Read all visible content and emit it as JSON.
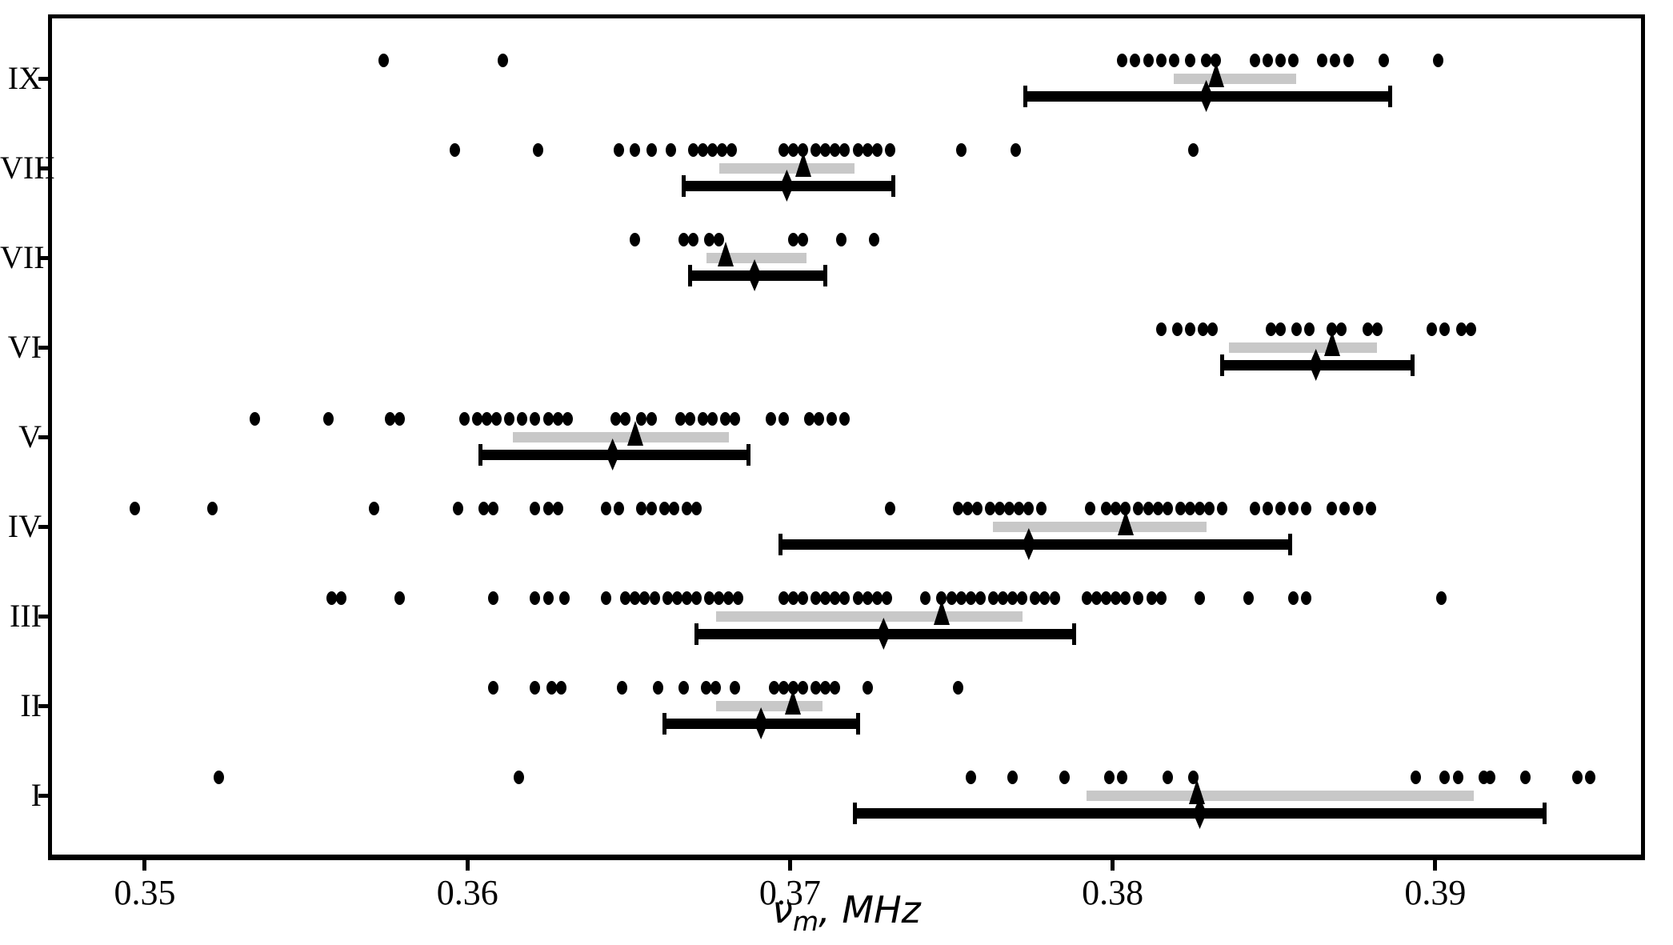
{
  "figure": {
    "background": "#ffffff",
    "frame_color": "#000000",
    "point_color": "#000000",
    "gray_bar_color": "#c8c8c8",
    "black_bar_color": "#000000",
    "x_axis_title": {
      "symbol": "ν",
      "subscript": "m",
      "rest": ", MHz"
    }
  },
  "chart_data": {
    "type": "scatter",
    "title": "",
    "xlabel": "ν_m, MHz",
    "ylabel": "",
    "grid": false,
    "legend": "none",
    "xlim": [
      0.347,
      0.3965
    ],
    "x_ticks": [
      0.35,
      0.36,
      0.37,
      0.38,
      0.39
    ],
    "x_tick_labels": [
      "0.35",
      "0.36",
      "0.37",
      "0.38",
      "0.39"
    ],
    "categories": [
      "IX",
      "VIII",
      "VII",
      "VI",
      "V",
      "IV",
      "III",
      "II",
      "I"
    ],
    "rows": [
      {
        "label": "IX",
        "points": [
          0.3574,
          0.3611,
          0.3803,
          0.3807,
          0.3811,
          0.3815,
          0.3819,
          0.3824,
          0.3829,
          0.3832,
          0.3844,
          0.3848,
          0.3852,
          0.3856,
          0.3865,
          0.3869,
          0.3873,
          0.3884,
          0.3901
        ],
        "gray_interval": [
          0.3819,
          0.3857
        ],
        "triangle": 0.3832,
        "black_interval": [
          0.3773,
          0.3886
        ],
        "diamond": 0.3829
      },
      {
        "label": "VIII",
        "points": [
          0.3596,
          0.3622,
          0.3647,
          0.3652,
          0.3657,
          0.3663,
          0.367,
          0.3673,
          0.3676,
          0.3679,
          0.3682,
          0.3698,
          0.3701,
          0.3704,
          0.3708,
          0.3711,
          0.3714,
          0.3717,
          0.3721,
          0.3724,
          0.3727,
          0.3731,
          0.3753,
          0.377,
          0.3825
        ],
        "gray_interval": [
          0.3678,
          0.372
        ],
        "triangle": 0.3704,
        "black_interval": [
          0.3667,
          0.3732
        ],
        "diamond": 0.3699
      },
      {
        "label": "VII",
        "points": [
          0.3652,
          0.3667,
          0.367,
          0.3675,
          0.3678,
          0.3701,
          0.3704,
          0.3716,
          0.3726
        ],
        "gray_interval": [
          0.3674,
          0.3705
        ],
        "triangle": 0.368,
        "black_interval": [
          0.3669,
          0.3711
        ],
        "diamond": 0.3689
      },
      {
        "label": "VI",
        "points": [
          0.3815,
          0.382,
          0.3824,
          0.3828,
          0.3831,
          0.3849,
          0.3852,
          0.3857,
          0.3861,
          0.3868,
          0.3871,
          0.3879,
          0.3882,
          0.3899,
          0.3903,
          0.3908,
          0.3911
        ],
        "gray_interval": [
          0.3836,
          0.3882
        ],
        "triangle": 0.3868,
        "black_interval": [
          0.3834,
          0.3893
        ],
        "diamond": 0.3863
      },
      {
        "label": "V",
        "points": [
          0.3534,
          0.3557,
          0.3576,
          0.3579,
          0.3599,
          0.3603,
          0.3606,
          0.3609,
          0.3613,
          0.3617,
          0.3621,
          0.3625,
          0.3628,
          0.3631,
          0.3646,
          0.3649,
          0.3654,
          0.3657,
          0.3666,
          0.3669,
          0.3673,
          0.3676,
          0.368,
          0.3683,
          0.3694,
          0.3698,
          0.3706,
          0.3709,
          0.3713,
          0.3717
        ],
        "gray_interval": [
          0.3614,
          0.3681
        ],
        "triangle": 0.3652,
        "black_interval": [
          0.3604,
          0.3687
        ],
        "diamond": 0.3645
      },
      {
        "label": "IV",
        "points": [
          0.3497,
          0.3521,
          0.3571,
          0.3597,
          0.3605,
          0.3608,
          0.3621,
          0.3625,
          0.3628,
          0.3643,
          0.3647,
          0.3654,
          0.3657,
          0.3661,
          0.3664,
          0.3668,
          0.3671,
          0.3731,
          0.3752,
          0.3755,
          0.3758,
          0.3762,
          0.3765,
          0.3768,
          0.3771,
          0.3774,
          0.3778,
          0.3793,
          0.3798,
          0.3801,
          0.3804,
          0.3808,
          0.3811,
          0.3814,
          0.3817,
          0.3821,
          0.3824,
          0.3827,
          0.383,
          0.3834,
          0.3844,
          0.3848,
          0.3852,
          0.3856,
          0.386,
          0.3868,
          0.3872,
          0.3876,
          0.388
        ],
        "gray_interval": [
          0.3763,
          0.3829
        ],
        "triangle": 0.3804,
        "black_interval": [
          0.3697,
          0.3855
        ],
        "diamond": 0.3774
      },
      {
        "label": "III",
        "points": [
          0.3558,
          0.3561,
          0.3579,
          0.3608,
          0.3621,
          0.3625,
          0.363,
          0.3643,
          0.3649,
          0.3652,
          0.3655,
          0.3658,
          0.3662,
          0.3665,
          0.3668,
          0.3671,
          0.3675,
          0.3678,
          0.3681,
          0.3684,
          0.3698,
          0.3701,
          0.3704,
          0.3708,
          0.3711,
          0.3714,
          0.3717,
          0.3721,
          0.3724,
          0.3727,
          0.373,
          0.3742,
          0.3747,
          0.375,
          0.3753,
          0.3756,
          0.3759,
          0.3763,
          0.3766,
          0.3769,
          0.3772,
          0.3776,
          0.3779,
          0.3782,
          0.3792,
          0.3795,
          0.3798,
          0.3801,
          0.3804,
          0.3808,
          0.3812,
          0.3815,
          0.3827,
          0.3842,
          0.3856,
          0.386,
          0.3902
        ],
        "gray_interval": [
          0.3677,
          0.3772
        ],
        "triangle": 0.3747,
        "black_interval": [
          0.3671,
          0.3788
        ],
        "diamond": 0.3729
      },
      {
        "label": "II",
        "points": [
          0.3608,
          0.3621,
          0.3626,
          0.3629,
          0.3648,
          0.3659,
          0.3667,
          0.3674,
          0.3677,
          0.3683,
          0.3695,
          0.3698,
          0.3701,
          0.3704,
          0.3708,
          0.3711,
          0.3714,
          0.3724,
          0.3752
        ],
        "gray_interval": [
          0.3677,
          0.371
        ],
        "triangle": 0.3701,
        "black_interval": [
          0.3661,
          0.3721
        ],
        "diamond": 0.3691
      },
      {
        "label": "I",
        "points": [
          0.3523,
          0.3616,
          0.3756,
          0.3769,
          0.3785,
          0.3799,
          0.3803,
          0.3817,
          0.3825,
          0.3894,
          0.3903,
          0.3907,
          0.3915,
          0.3917,
          0.3928,
          0.3944,
          0.3948
        ],
        "gray_interval": [
          0.3792,
          0.3912
        ],
        "triangle": 0.3826,
        "black_interval": [
          0.372,
          0.3934
        ],
        "diamond": 0.3827
      }
    ]
  }
}
